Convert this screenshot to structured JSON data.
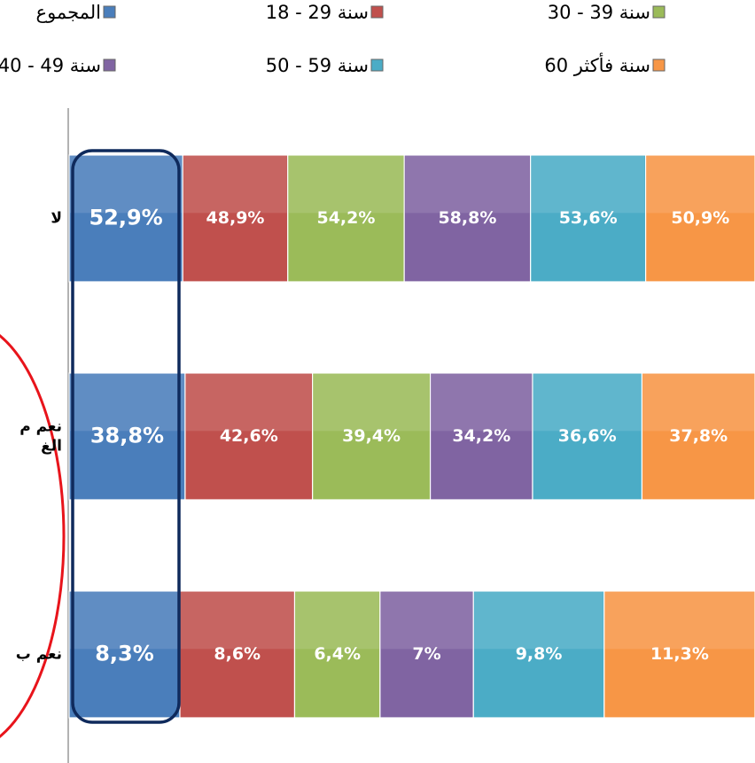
{
  "chart_data": {
    "type": "bar",
    "categories": [
      [
        "لا"
      ],
      [
        "نعم م",
        "الغ"
      ],
      [
        "نعم ب"
      ]
    ],
    "series": [
      {
        "name": "المجموع",
        "color": "#4a7ebb",
        "values": [
          52.9,
          38.8,
          8.3
        ],
        "value_labels": [
          "52,9%",
          "38,8%",
          "8,3%"
        ]
      },
      {
        "name": "18 - 29 سنة",
        "color": "#c0504d",
        "values": [
          48.9,
          42.6,
          8.6
        ],
        "value_labels": [
          "48,9%",
          "42,6%",
          "8,6%"
        ]
      },
      {
        "name": "30 - 39 سنة",
        "color": "#9bbb59",
        "values": [
          54.2,
          39.4,
          6.4
        ],
        "value_labels": [
          "54,2%",
          "39,4%",
          "6,4%"
        ]
      },
      {
        "name": "40 - 49 سنة",
        "color": "#8064a2",
        "values": [
          58.8,
          34.2,
          7
        ],
        "value_labels": [
          "58,8%",
          "34,2%",
          "7%"
        ]
      },
      {
        "name": "50 - 59 سنة",
        "color": "#4bacc6",
        "values": [
          53.6,
          36.6,
          9.8
        ],
        "value_labels": [
          "53,6%",
          "36,6%",
          "9,8%"
        ]
      },
      {
        "name": "60 سنة فأكثر",
        "color": "#f79646",
        "values": [
          50.9,
          37.8,
          11.3
        ],
        "value_labels": [
          "50,9%",
          "37,8%",
          "11,3%"
        ]
      }
    ],
    "stacked_percent": true
  }
}
